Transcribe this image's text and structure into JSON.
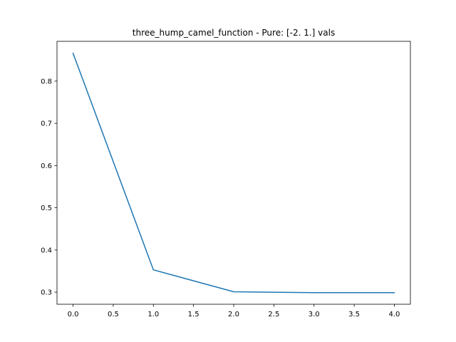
{
  "chart_data": {
    "type": "line",
    "title": "three_hump_camel_function - Pure: [-2.  1.] vals",
    "xlabel": "",
    "ylabel": "",
    "x": [
      0,
      1,
      2,
      3,
      4
    ],
    "series": [
      {
        "values": [
          0.866,
          0.353,
          0.301,
          0.299,
          0.299
        ],
        "color": "#1f77b4"
      }
    ],
    "xlim": [
      -0.2,
      4.2
    ],
    "ylim": [
      0.2715,
      0.8943
    ],
    "xticks": [
      0.0,
      0.5,
      1.0,
      1.5,
      2.0,
      2.5,
      3.0,
      3.5,
      4.0
    ],
    "xtick_labels": [
      "0.0",
      "0.5",
      "1.0",
      "1.5",
      "2.0",
      "2.5",
      "3.0",
      "3.5",
      "4.0"
    ],
    "yticks": [
      0.3,
      0.4,
      0.5,
      0.6,
      0.7,
      0.8
    ],
    "ytick_labels": [
      "0.3",
      "0.4",
      "0.5",
      "0.6",
      "0.7",
      "0.8"
    ],
    "grid": false,
    "legend": false
  }
}
